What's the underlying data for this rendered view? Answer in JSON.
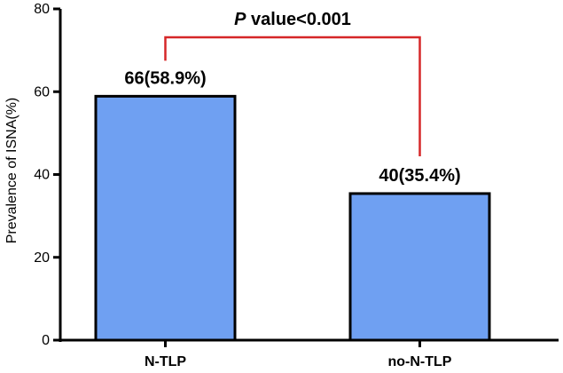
{
  "chart_data": {
    "type": "bar",
    "categories": [
      "N-TLP",
      "no-N-TLP"
    ],
    "values": [
      58.9,
      35.4
    ],
    "data_labels": [
      "66(58.9%)",
      "40(35.4%)"
    ],
    "title": "",
    "xlabel": "",
    "ylabel": "Prevalence of ISNA(%)",
    "ylim": [
      0,
      80
    ],
    "yticks": [
      0,
      20,
      40,
      60,
      80
    ],
    "ytick_labels": [
      "0",
      "20",
      "40",
      "60",
      "80"
    ],
    "grid": false,
    "bar_color": "#6fa0f2",
    "bar_edge_color": "#000000",
    "significance": {
      "italic_part": "P",
      "rest": " value<0.001",
      "color": "#d62728"
    }
  }
}
